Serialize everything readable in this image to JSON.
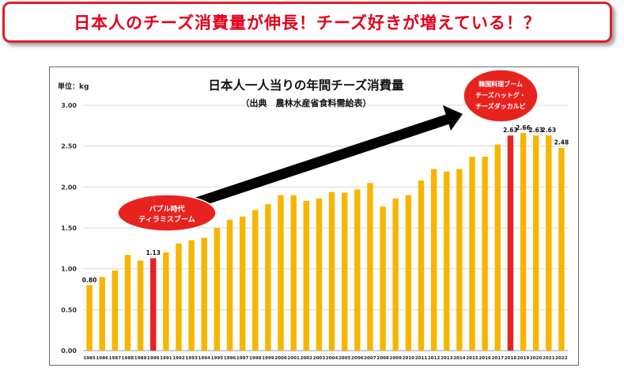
{
  "headline": {
    "text": "日本人のチーズ消費量が伸長！チーズ好きが増えている！？",
    "color": "#e3001b"
  },
  "colors": {
    "bar": "#f7b500",
    "highlight_bar": "#e8231f",
    "bubble": "#e8231f",
    "arrow": "#000000"
  },
  "chart_data": {
    "type": "bar",
    "title": "日本人一人当りの年間チーズ消費量",
    "subtitle": "（出典　農林水産省食料需給表）",
    "unit_label": "単位：kg",
    "xlabel": "",
    "ylabel": "",
    "ylim": [
      0,
      3
    ],
    "yticks": [
      "0.00",
      "0.50",
      "1.00",
      "1.50",
      "2.00",
      "2.50",
      "3.00"
    ],
    "ytick_values": [
      0,
      0.5,
      1,
      1.5,
      2,
      2.5,
      3
    ],
    "grid": true,
    "categories": [
      "1985",
      "1986",
      "1987",
      "1988",
      "1989",
      "1990",
      "1991",
      "1992",
      "1993",
      "1994",
      "1995",
      "1996",
      "1997",
      "1998",
      "1999",
      "2000",
      "2001",
      "2002",
      "2003",
      "2004",
      "2005",
      "2006",
      "2007",
      "2008",
      "2009",
      "2010",
      "2011",
      "2012",
      "2013",
      "2014",
      "2015",
      "2016",
      "2017",
      "2018",
      "2019",
      "2020",
      "2021",
      "2022"
    ],
    "values": [
      0.8,
      0.9,
      0.98,
      1.17,
      1.1,
      1.13,
      1.2,
      1.31,
      1.35,
      1.38,
      1.5,
      1.6,
      1.64,
      1.72,
      1.79,
      1.9,
      1.9,
      1.83,
      1.86,
      1.94,
      1.93,
      1.97,
      2.05,
      1.76,
      1.86,
      1.9,
      2.08,
      2.22,
      2.19,
      2.22,
      2.37,
      2.37,
      2.52,
      2.63,
      2.66,
      2.63,
      2.63,
      2.48
    ],
    "highlight_categories": [
      "1990",
      "2018"
    ],
    "data_labels": [
      {
        "category": "1985",
        "label": "0.80"
      },
      {
        "category": "1990",
        "label": "1.13"
      },
      {
        "category": "2018",
        "label": "2.63"
      },
      {
        "category": "2019",
        "label": "2.66"
      },
      {
        "category": "2020",
        "label": "2.63"
      },
      {
        "category": "2021",
        "label": "2.63"
      },
      {
        "category": "2022",
        "label": "2.48"
      }
    ],
    "annotations": [
      {
        "name": "bubble-era",
        "lines": [
          "バブル時代",
          "ティラミスブーム"
        ]
      },
      {
        "name": "korean-boom",
        "lines": [
          "韓国料理ブーム",
          "チーズハットグ・",
          "チーズダッカルビ"
        ]
      }
    ]
  }
}
